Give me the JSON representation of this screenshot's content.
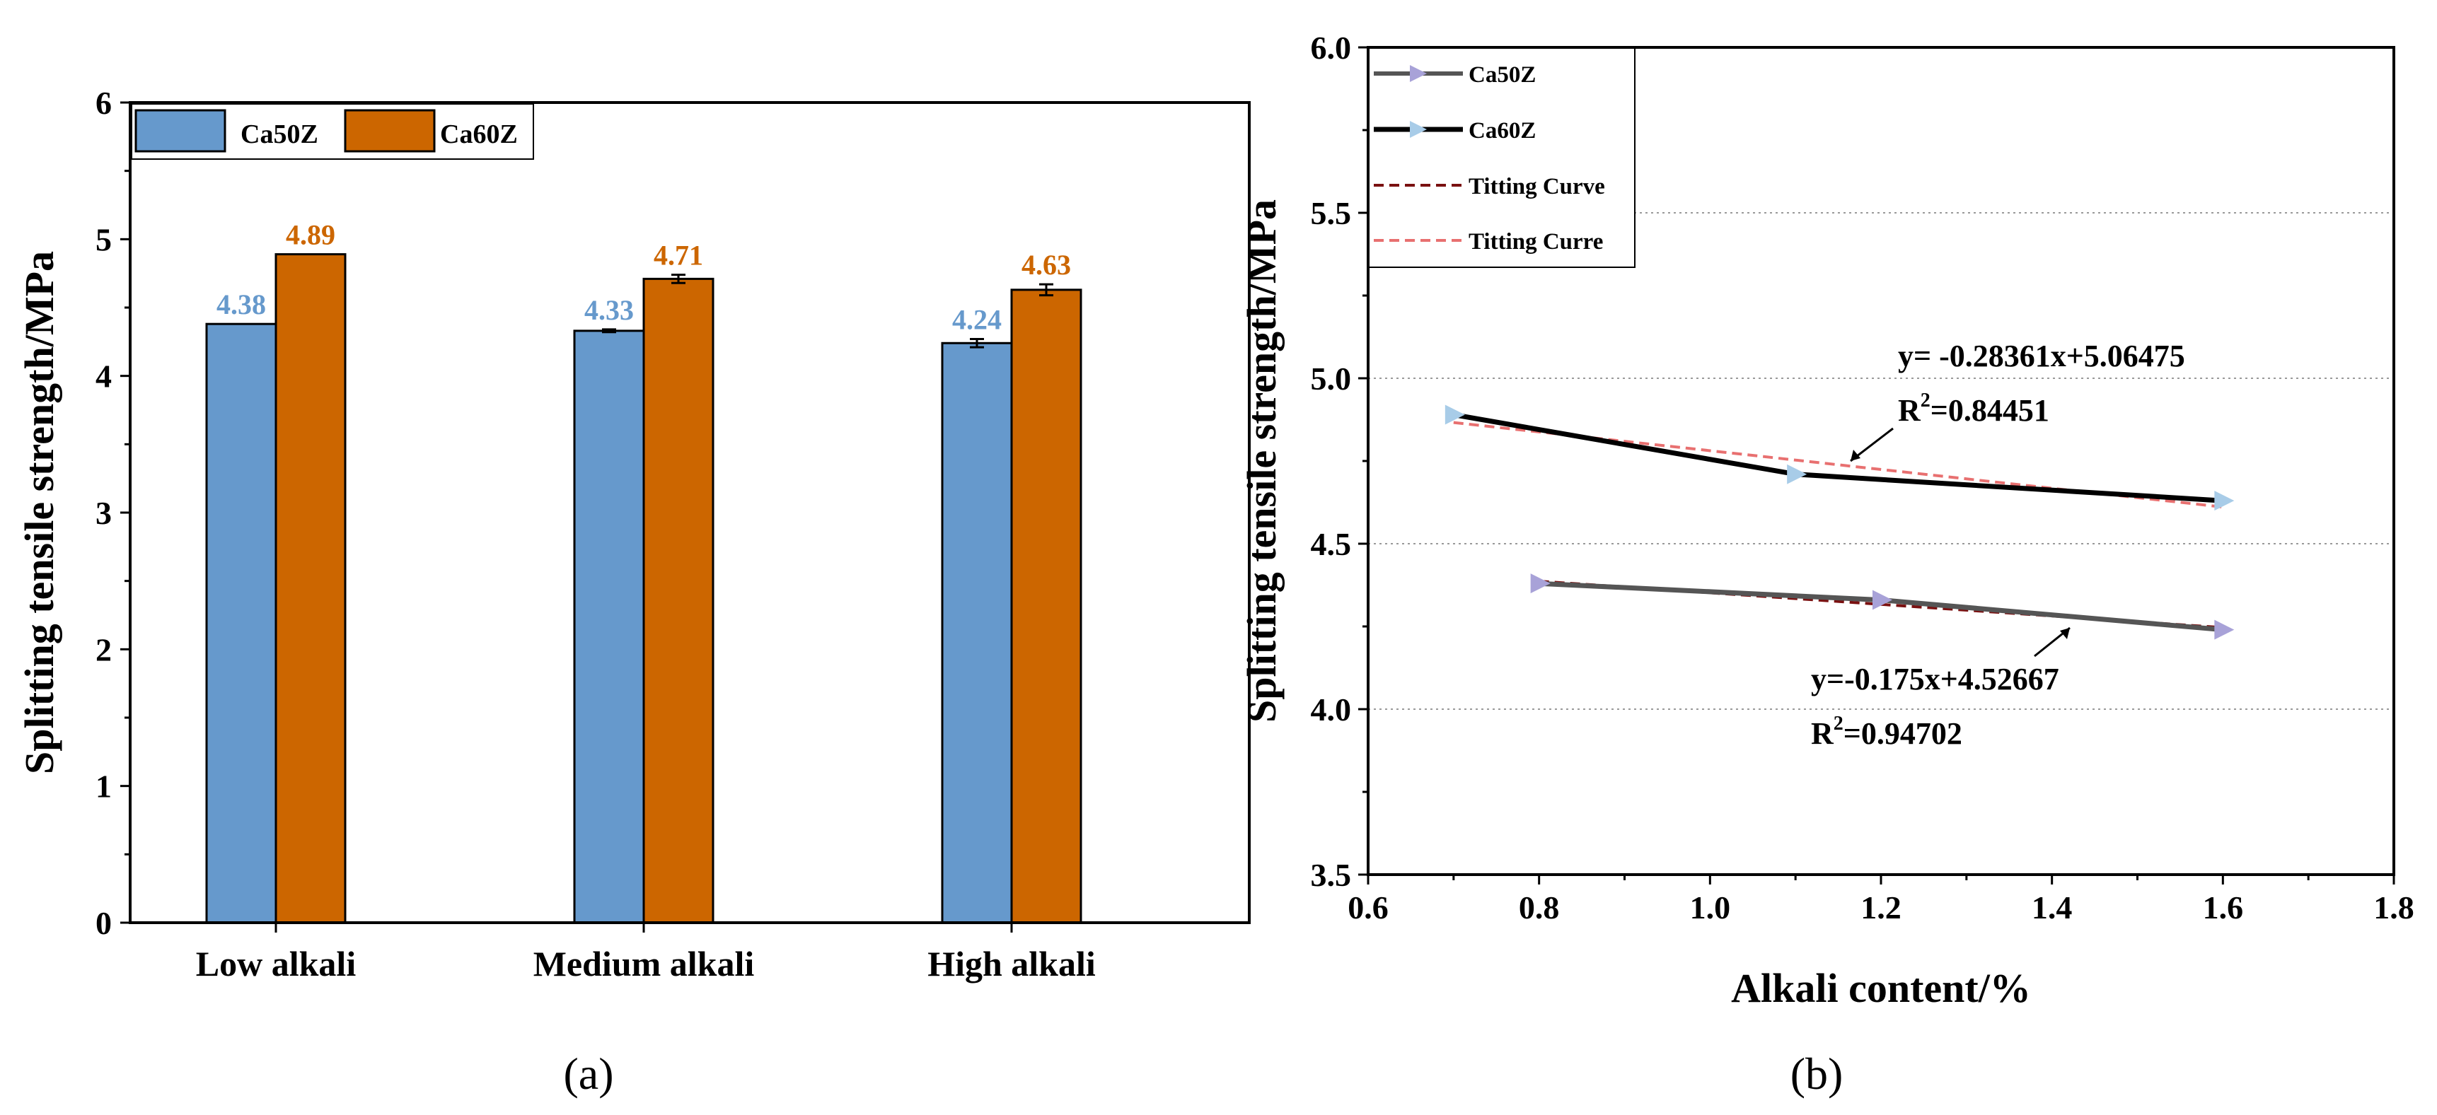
{
  "chart_data": [
    {
      "type": "bar",
      "panel_label": "(a)",
      "categories": [
        "Low alkali",
        "Medium alkali",
        "High alkali"
      ],
      "series": [
        {
          "name": "Ca50Z",
          "values": [
            4.38,
            4.33,
            4.24
          ],
          "labels": [
            "4.38",
            "4.33",
            "4.24"
          ],
          "errors": [
            0,
            0.01,
            0.03
          ],
          "color": "#6699CC",
          "label_color": "#6699CC"
        },
        {
          "name": "Ca60Z",
          "values": [
            4.89,
            4.71,
            4.63
          ],
          "labels": [
            "4.89",
            "4.71",
            "4.63"
          ],
          "errors": [
            0,
            0.03,
            0.04
          ],
          "color": "#CC6600",
          "label_color": "#CC6600"
        }
      ],
      "ylabel": "Splitting tensile strength/MPa",
      "xlabel": "",
      "ylim": [
        0,
        6
      ],
      "yticks": [
        "0",
        "1",
        "2",
        "3",
        "4",
        "5",
        "6"
      ],
      "legend_position": "top-left",
      "grid": false
    },
    {
      "type": "line",
      "panel_label": "(b)",
      "series": [
        {
          "name": "Ca50Z",
          "x": [
            0.8,
            1.2,
            1.6
          ],
          "y": [
            4.38,
            4.33,
            4.24
          ],
          "line_color": "#555555",
          "marker_color": "#A8A2D8",
          "kind": "data"
        },
        {
          "name": "Ca60Z",
          "x": [
            0.7,
            1.1,
            1.6
          ],
          "y": [
            4.89,
            4.71,
            4.63
          ],
          "line_color": "#000000",
          "marker_color": "#A8CCE8",
          "kind": "data"
        },
        {
          "name": "Titting Curve",
          "x": [
            0.8,
            1.6
          ],
          "y": [
            4.38667,
            4.24667
          ],
          "line_color": "#7A1010",
          "kind": "fit"
        },
        {
          "name": "Titting Curre",
          "x": [
            0.7,
            1.6
          ],
          "y": [
            4.86622,
            4.61097
          ],
          "line_color": "#E87070",
          "kind": "fit"
        }
      ],
      "annotations": [
        {
          "text": "y= -0.28361x+5.06475",
          "r2_base": "R",
          "r2_sup": "2",
          "r2_rest": "=0.84451"
        },
        {
          "text": "y=-0.175x+4.52667",
          "r2_base": "R",
          "r2_sup": "2",
          "r2_rest": "=0.94702"
        }
      ],
      "xlabel": "Alkali content/%",
      "ylabel": "Splitting tensile strength/MPa",
      "xlim": [
        0.6,
        1.8
      ],
      "ylim": [
        3.5,
        6.0
      ],
      "xticks": [
        "0.6",
        "0.8",
        "1.0",
        "1.2",
        "1.4",
        "1.6",
        "1.8"
      ],
      "yticks": [
        "3.5",
        "4.0",
        "4.5",
        "5.0",
        "5.5",
        "6.0"
      ],
      "grid": "horizontal dotted",
      "legend_position": "top-left"
    }
  ]
}
